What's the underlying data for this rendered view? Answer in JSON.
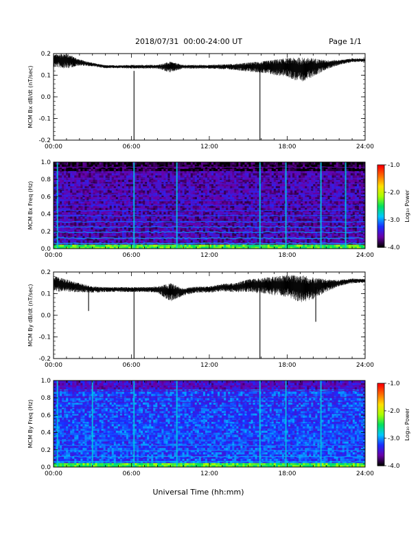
{
  "header": {
    "date_range": "2018/07/31  00:00-24:00 UT",
    "page": "Page 1/1"
  },
  "xlabel": "Universal Time (hh:mm)",
  "colorbar": {
    "label": "Log₁₀ Power",
    "ticks": [
      "-1.0",
      "-2.0",
      "-3.0",
      "-4.0"
    ],
    "range": [
      -4.0,
      -1.0
    ],
    "colors": [
      "#000000",
      "#6a00a8",
      "#1a2cff",
      "#00c8ff",
      "#00e060",
      "#a8ff00",
      "#ffe000",
      "#ff7000",
      "#ff0000"
    ]
  },
  "chart_data": [
    {
      "type": "line",
      "ylabel": "MCM Bx dB/dt (nT/sec)",
      "xlim_hours": [
        0,
        24
      ],
      "ylim": [
        -0.2,
        0.2
      ],
      "x_ticks": [
        "00:00",
        "06:00",
        "12:00",
        "18:00",
        "24:00"
      ],
      "y_ticks": [
        "0.2",
        "0.1",
        "0.0",
        "-0.1",
        "-0.2"
      ],
      "envelope": {
        "x_hours": [
          0,
          1,
          2,
          3,
          4,
          5,
          6,
          7,
          8,
          9,
          10,
          11,
          12,
          13,
          14,
          15,
          16,
          17,
          18,
          19,
          20,
          21,
          22,
          23,
          24
        ],
        "center": [
          0.17,
          0.17,
          0.16,
          0.15,
          0.14,
          0.14,
          0.14,
          0.14,
          0.14,
          0.14,
          0.14,
          0.14,
          0.14,
          0.14,
          0.14,
          0.14,
          0.14,
          0.14,
          0.14,
          0.13,
          0.14,
          0.15,
          0.16,
          0.17,
          0.17
        ],
        "amplitude": [
          0.02,
          0.025,
          0.01,
          0.006,
          0.005,
          0.005,
          0.006,
          0.006,
          0.006,
          0.018,
          0.006,
          0.006,
          0.006,
          0.008,
          0.01,
          0.015,
          0.018,
          0.025,
          0.03,
          0.04,
          0.03,
          0.015,
          0.008,
          0.006,
          0.005
        ]
      },
      "spikes": [
        {
          "x_hours": 6.2,
          "min": -0.2,
          "max": 0.12
        },
        {
          "x_hours": 15.9,
          "min": -0.2,
          "max": 0.14
        }
      ]
    },
    {
      "type": "heatmap",
      "ylabel": "MCM Bx Freq (Hz)",
      "xlim_hours": [
        0,
        24
      ],
      "ylim": [
        0.0,
        1.0
      ],
      "x_ticks": [
        "00:00",
        "06:00",
        "12:00",
        "18:00",
        "24:00"
      ],
      "y_ticks": [
        "1.0",
        "0.8",
        "0.6",
        "0.4",
        "0.2",
        "0.0"
      ],
      "harmonic_lines_hz": [
        0.06,
        0.12,
        0.19,
        0.25,
        0.31,
        0.38,
        0.44,
        0.5,
        0.56,
        0.62,
        0.69,
        0.75,
        0.81,
        0.88,
        0.94
      ],
      "bright_columns_hours": [
        0.3,
        6.2,
        9.5,
        15.9,
        17.9,
        20.6,
        22.5
      ],
      "background_log_power": -3.6
    },
    {
      "type": "line",
      "ylabel": "MCM By dB/dt (nT/sec)",
      "xlim_hours": [
        0,
        24
      ],
      "ylim": [
        -0.2,
        0.2
      ],
      "x_ticks": [
        "00:00",
        "06:00",
        "12:00",
        "18:00",
        "24:00"
      ],
      "y_ticks": [
        "0.2",
        "0.1",
        "0.0",
        "-0.1",
        "-0.2"
      ],
      "envelope": {
        "x_hours": [
          0,
          1,
          2,
          3,
          4,
          5,
          6,
          7,
          8,
          9,
          10,
          11,
          12,
          13,
          14,
          15,
          16,
          17,
          18,
          19,
          20,
          21,
          22,
          23,
          24
        ],
        "center": [
          0.15,
          0.14,
          0.13,
          0.12,
          0.12,
          0.12,
          0.12,
          0.12,
          0.12,
          0.11,
          0.11,
          0.12,
          0.12,
          0.13,
          0.13,
          0.14,
          0.14,
          0.14,
          0.14,
          0.13,
          0.13,
          0.14,
          0.15,
          0.16,
          0.16
        ],
        "amplitude": [
          0.025,
          0.02,
          0.015,
          0.01,
          0.008,
          0.008,
          0.008,
          0.008,
          0.01,
          0.03,
          0.012,
          0.01,
          0.01,
          0.012,
          0.015,
          0.02,
          0.025,
          0.03,
          0.035,
          0.045,
          0.035,
          0.02,
          0.01,
          0.008,
          0.006
        ]
      },
      "spikes": [
        {
          "x_hours": 6.2,
          "min": -0.2,
          "max": 0.12
        },
        {
          "x_hours": 15.9,
          "min": -0.2,
          "max": 0.14
        },
        {
          "x_hours": 2.7,
          "min": 0.02,
          "max": 0.13
        },
        {
          "x_hours": 20.2,
          "min": -0.03,
          "max": 0.13
        }
      ]
    },
    {
      "type": "heatmap",
      "ylabel": "MCM By Freq (Hz)",
      "xlim_hours": [
        0,
        24
      ],
      "ylim": [
        0.0,
        1.0
      ],
      "x_ticks": [
        "00:00",
        "06:00",
        "12:00",
        "18:00",
        "24:00"
      ],
      "y_ticks": [
        "1.0",
        "0.8",
        "0.6",
        "0.4",
        "0.2",
        "0.0"
      ],
      "harmonic_lines_hz": [
        0.06,
        0.12,
        0.19,
        0.25,
        0.31,
        0.38,
        0.44,
        0.5,
        0.56,
        0.62,
        0.69,
        0.75,
        0.81,
        0.88,
        0.94
      ],
      "bright_columns_hours": [
        0.3,
        3.0,
        6.2,
        9.5,
        15.9,
        17.9,
        20.6
      ],
      "background_log_power": -3.2
    }
  ]
}
